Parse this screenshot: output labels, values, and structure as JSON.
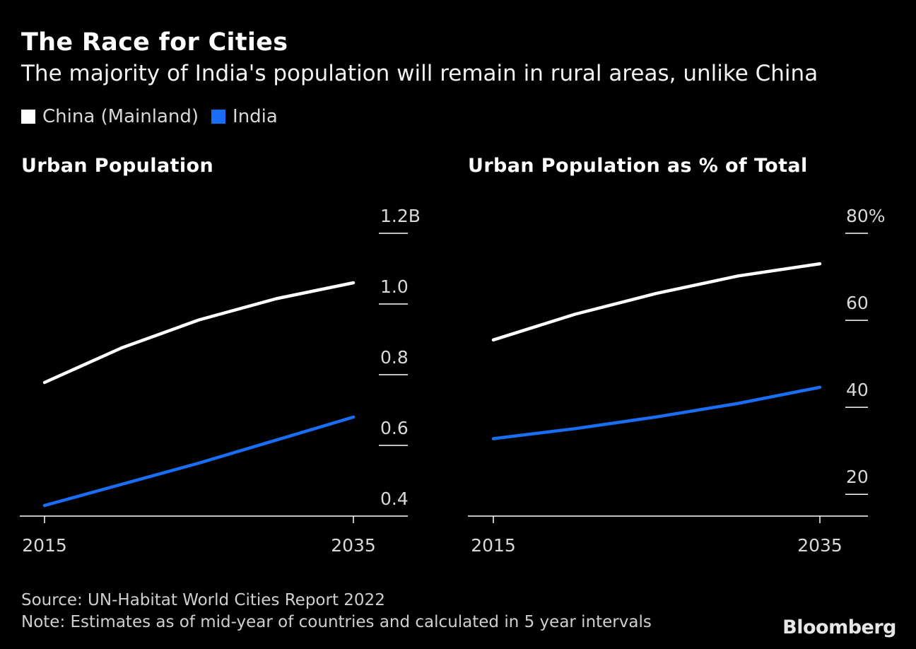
{
  "title": "The Race for Cities",
  "subtitle": "The majority of India's population will remain in rural areas, unlike China",
  "legend": [
    {
      "label": "China (Mainland)",
      "color": "#ffffff"
    },
    {
      "label": "India",
      "color": "#1a6ef5"
    }
  ],
  "footer": {
    "source": "Source: UN-Habitat World Cities Report 2022",
    "note": "Note: Estimates as of mid-year of countries and calculated in 5 year intervals",
    "brand": "Bloomberg"
  },
  "chart_data": [
    {
      "type": "line",
      "title": "Urban Population",
      "x": [
        2015,
        2020,
        2025,
        2030,
        2035
      ],
      "x_tick_labels": [
        "2015",
        "2035"
      ],
      "ylim": [
        0.4,
        1.2
      ],
      "y_ticks": [
        0.4,
        0.6,
        0.8,
        1.0,
        1.2
      ],
      "y_tick_labels": [
        "0.4",
        "0.6",
        "0.8",
        "1.0",
        "1.2B"
      ],
      "y_axis_position": "right",
      "grid": false,
      "series": [
        {
          "name": "China (Mainland)",
          "color": "#ffffff",
          "values": [
            0.778,
            0.876,
            0.955,
            1.015,
            1.06
          ]
        },
        {
          "name": "India",
          "color": "#1a6ef5",
          "values": [
            0.43,
            0.49,
            0.55,
            0.615,
            0.68
          ]
        }
      ]
    },
    {
      "type": "line",
      "title": "Urban Population as % of Total",
      "x": [
        2015,
        2020,
        2025,
        2030,
        2035
      ],
      "x_tick_labels": [
        "2015",
        "2035"
      ],
      "ylim": [
        15,
        80
      ],
      "y_ticks": [
        20,
        40,
        60,
        80
      ],
      "y_tick_labels": [
        "20",
        "40",
        "60",
        "80%"
      ],
      "y_axis_position": "right",
      "grid": false,
      "series": [
        {
          "name": "China (Mainland)",
          "color": "#ffffff",
          "values": [
            55.5,
            61.4,
            66.2,
            70.2,
            73.0
          ]
        },
        {
          "name": "India",
          "color": "#1a6ef5",
          "values": [
            32.8,
            35.1,
            37.8,
            40.9,
            44.6
          ]
        }
      ]
    }
  ]
}
